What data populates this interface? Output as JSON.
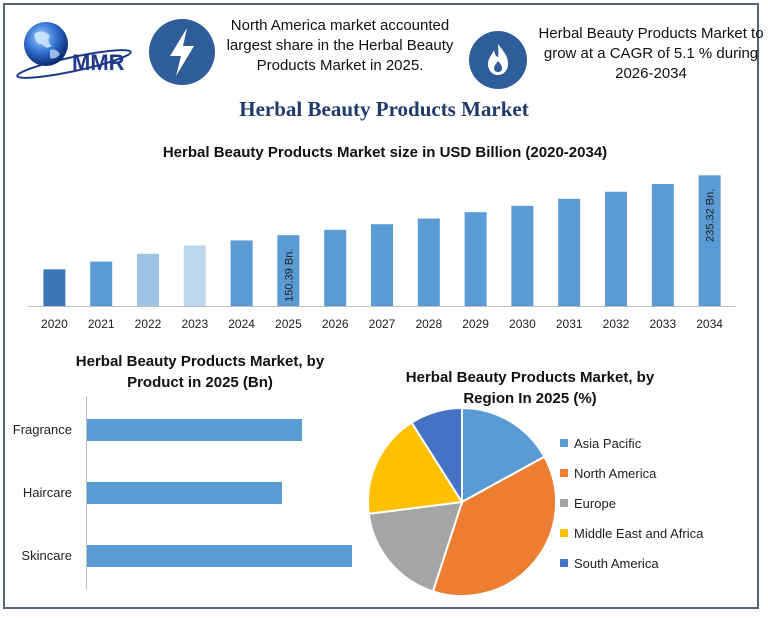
{
  "header": {
    "logo_text": "MMR",
    "note_left": "North America market accounted largest share in the Herbal Beauty Products Market in 2025.",
    "note_right": "Herbal Beauty Products Market to grow at a CAGR of 5.1 % during 2026-2034",
    "icon_left": "lightning-bolt-icon",
    "icon_right": "flame-icon"
  },
  "title": "Herbal Beauty Products Market",
  "colors": {
    "title": "#1f3a6b",
    "bar_blue": "#5b9bd5",
    "icon_bg": "#2e5d9a"
  },
  "chart_data": [
    {
      "type": "bar",
      "title": "Herbal Beauty Products Market size in USD Billion (2020-2034)",
      "categories": [
        "2020",
        "2021",
        "2022",
        "2023",
        "2024",
        "2025",
        "2026",
        "2027",
        "2028",
        "2029",
        "2030",
        "2031",
        "2032",
        "2033",
        "2034"
      ],
      "values": [
        102,
        113,
        124,
        136,
        143,
        150.39,
        158,
        166,
        174,
        183,
        192,
        202,
        212,
        223,
        235.32
      ],
      "bar_colors": [
        "#3b78b5",
        "#5b9bd5",
        "#9dc3e6",
        "#bdd7ee",
        "#5b9bd5",
        "#5b9bd5",
        "#5b9bd5",
        "#5b9bd5",
        "#5b9bd5",
        "#5b9bd5",
        "#5b9bd5",
        "#5b9bd5",
        "#5b9bd5",
        "#5b9bd5",
        "#5b9bd5"
      ],
      "labels": {
        "2025": "150.39 Bn.",
        "2034": "235.32 Bn."
      },
      "ylim": [
        50,
        240
      ],
      "grid": false
    },
    {
      "type": "bar",
      "orientation": "horizontal",
      "title": "Herbal Beauty Products Market, by Product in 2025 (Bn)",
      "categories": [
        "Fragrance",
        "Haircare",
        "Skincare"
      ],
      "values": [
        43,
        39,
        53
      ],
      "xlim": [
        0,
        60
      ],
      "grid": false
    },
    {
      "type": "pie",
      "title": "Herbal Beauty Products Market, by Region In 2025 (%)",
      "categories": [
        "Asia Pacific",
        "North America",
        "Europe",
        "Middle East and Africa",
        "South America"
      ],
      "values": [
        17,
        38,
        18,
        18,
        9
      ],
      "colors": [
        "#5b9bd5",
        "#ed7d31",
        "#a5a5a5",
        "#ffc000",
        "#4472c4"
      ],
      "legend": "right"
    }
  ]
}
